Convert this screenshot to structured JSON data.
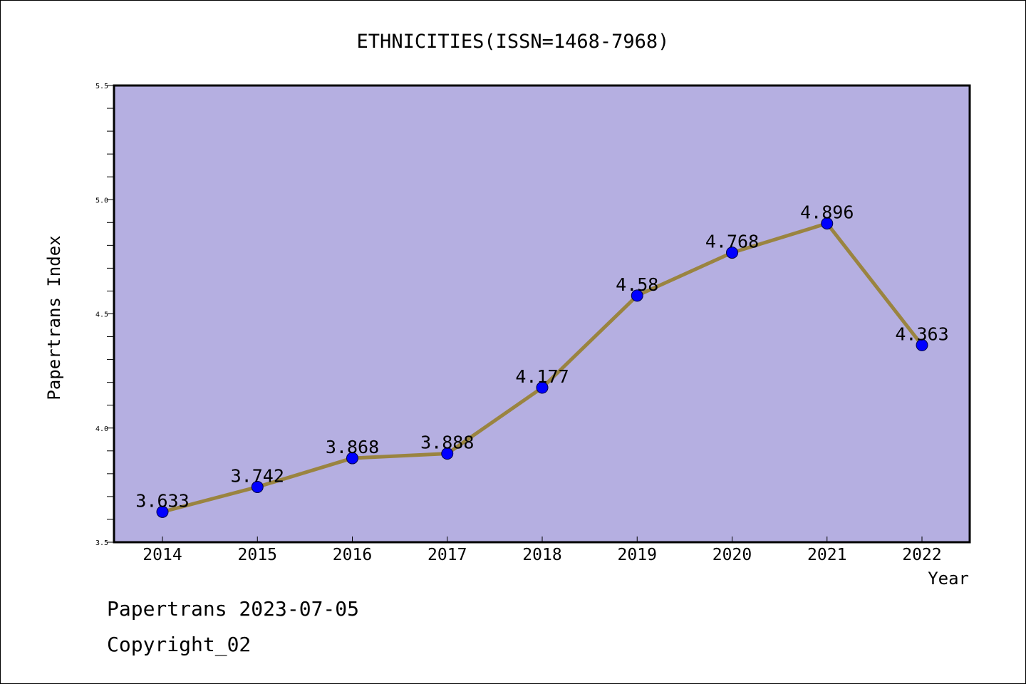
{
  "chart_data": {
    "type": "line",
    "title": "ETHNICITIES(ISSN=1468-7968)",
    "xlabel": "Year",
    "ylabel": "Papertrans Index",
    "categories": [
      "2014",
      "2015",
      "2016",
      "2017",
      "2018",
      "2019",
      "2020",
      "2021",
      "2022"
    ],
    "series": [
      {
        "values": [
          3.633,
          3.742,
          3.868,
          3.888,
          4.177,
          4.58,
          4.768,
          4.896,
          4.363
        ],
        "data_labels": [
          "3.633",
          "3.742",
          "3.868",
          "3.888",
          "4.177",
          "4.58",
          "4.768",
          "4.896",
          "4.363"
        ]
      }
    ],
    "ylim": [
      3.5,
      5.5
    ],
    "yticks": [
      3.5,
      4.0,
      4.5,
      5.0,
      5.5
    ],
    "ytick_labels": [
      "3.5",
      "4.0",
      "4.5",
      "5.0",
      "5.5"
    ],
    "grid": false,
    "legend": "none",
    "colors": {
      "plot_background": "#b5afe1",
      "line": "#9a8440",
      "marker": "#0000ff",
      "frame": "#000000"
    }
  },
  "footer": {
    "line1": "Papertrans 2023-07-05",
    "line2": "Copyright_02"
  }
}
